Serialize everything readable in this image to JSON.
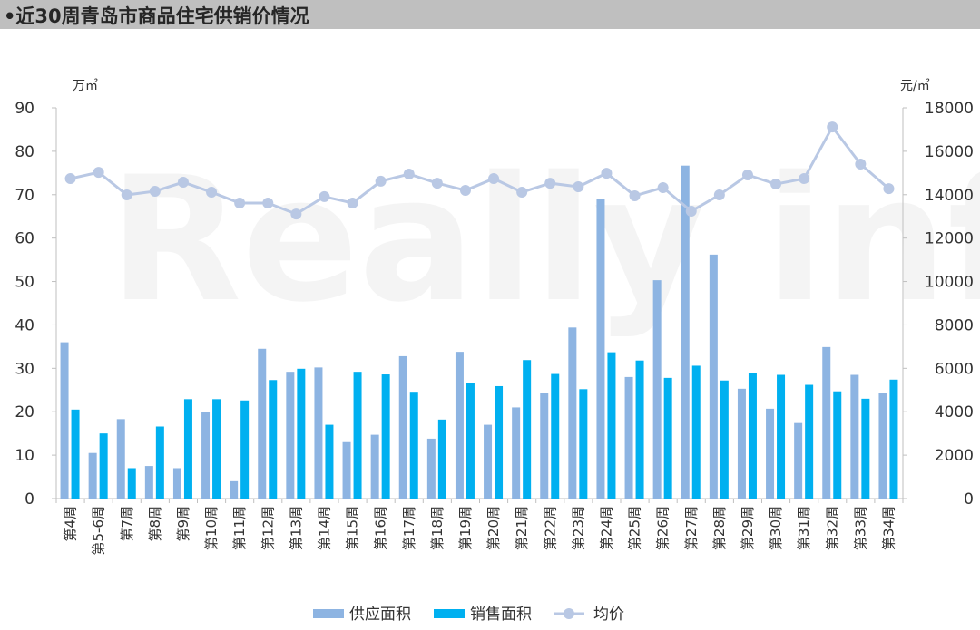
{
  "header": {
    "title": "•近30周青岛市商品住宅供销价情况"
  },
  "watermark": "Really info 锐理数据",
  "chart_data": {
    "type": "bar",
    "title": "",
    "categories": [
      "第4周",
      "第5-6周",
      "第7周",
      "第8周",
      "第9周",
      "第10周",
      "第11周",
      "第12周",
      "第13周",
      "第14周",
      "第15周",
      "第16周",
      "第17周",
      "第18周",
      "第19周",
      "第20周",
      "第21周",
      "第22周",
      "第23周",
      "第24周",
      "第25周",
      "第26周",
      "第27周",
      "第28周",
      "第29周",
      "第30周",
      "第31周",
      "第32周",
      "第33周",
      "第34周"
    ],
    "series": [
      {
        "name": "供应面积",
        "type": "bar",
        "axis": "left",
        "color": "#8db4e2",
        "values": [
          36,
          10.5,
          18.3,
          7.5,
          7,
          20,
          4,
          34.5,
          29.2,
          30.2,
          13,
          14.7,
          32.8,
          13.8,
          33.8,
          17,
          21,
          24.3,
          39.4,
          69,
          28,
          50.3,
          76.7,
          56.2,
          25.3,
          20.7,
          17.4,
          34.9,
          28.5,
          24.4
        ]
      },
      {
        "name": "销售面积",
        "type": "bar",
        "axis": "left",
        "color": "#00b0f0",
        "values": [
          20.5,
          15,
          7,
          16.6,
          22.9,
          22.9,
          22.6,
          27.3,
          29.9,
          17,
          29.2,
          28.6,
          24.6,
          18.2,
          26.6,
          25.9,
          31.9,
          28.7,
          25.2,
          33.7,
          31.8,
          27.8,
          30.6,
          27.2,
          29,
          28.5,
          26.2,
          24.7,
          23,
          27.4
        ]
      },
      {
        "name": "均价",
        "type": "line",
        "axis": "right",
        "color": "#b9c8e4",
        "values": [
          14740,
          15030,
          13990,
          14160,
          14575,
          14115,
          13615,
          13615,
          13110,
          13910,
          13615,
          14620,
          14950,
          14530,
          14200,
          14740,
          14115,
          14530,
          14365,
          14990,
          13950,
          14325,
          13240,
          13990,
          14910,
          14490,
          14740,
          17120,
          15410,
          14280
        ]
      }
    ],
    "left_axis": {
      "label": "万㎡",
      "range": [
        0,
        90
      ],
      "ticks": [
        0,
        10,
        20,
        30,
        40,
        50,
        60,
        70,
        80,
        90
      ]
    },
    "right_axis": {
      "label": "元/㎡",
      "range": [
        0,
        18000
      ],
      "ticks": [
        0,
        2000,
        4000,
        6000,
        8000,
        10000,
        12000,
        14000,
        16000,
        18000
      ]
    },
    "grid": false,
    "legend": "bottom"
  }
}
